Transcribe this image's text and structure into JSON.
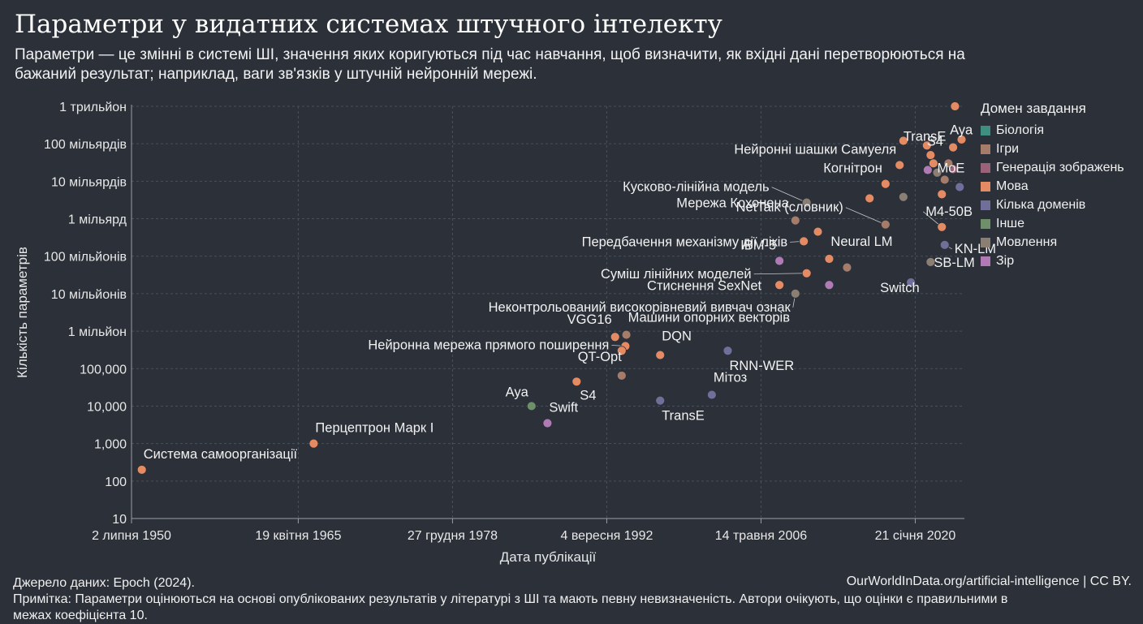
{
  "title": "Параметри у видатних системах штучного інтелекту",
  "subtitle": "Параметри — це змінні в системі ШІ, значення яких коригуються під час навчання, щоб визначити, як вхідні дані перетворюються на бажаний результат; наприклад, ваги зв'язків у штучній нейронній мережі.",
  "footer": {
    "source": "Джерело даних: Epoch (2024).",
    "url": "OurWorldInData.org/artificial-intelligence | CC BY.",
    "note": "Примітка: Параметри оцінюються на основі опублікованих результатів у літературі з ШІ та мають певну невизначеність. Автори очікують, що оцінки є правильними в межах коефіцієнта 10."
  },
  "chart_data": {
    "type": "scatter",
    "xlabel": "Дата публікації",
    "ylabel": "Кількість параметрів",
    "y_scale": "log",
    "xlim": [
      "1950-07-02",
      "2024-06-01"
    ],
    "ylim": [
      10,
      1000000000000
    ],
    "grid": true,
    "x_ticks": [
      {
        "date": "1950-07-02",
        "label": "2 липня 1950"
      },
      {
        "date": "1965-04-19",
        "label": "19 квітня 1965"
      },
      {
        "date": "1978-12-27",
        "label": "27 грудня 1978"
      },
      {
        "date": "1992-09-04",
        "label": "4 вересня 1992"
      },
      {
        "date": "2006-05-14",
        "label": "14 травня 2006"
      },
      {
        "date": "2020-01-21",
        "label": "21 січня 2020"
      }
    ],
    "y_ticks": [
      {
        "value": 10,
        "label": "10"
      },
      {
        "value": 100,
        "label": "100"
      },
      {
        "value": 1000,
        "label": "1,000"
      },
      {
        "value": 10000,
        "label": "10,000"
      },
      {
        "value": 100000,
        "label": "100,000"
      },
      {
        "value": 1000000,
        "label": "1 мільйон"
      },
      {
        "value": 10000000,
        "label": "10 мільйонів"
      },
      {
        "value": 100000000,
        "label": "100 мільйонів"
      },
      {
        "value": 1000000000,
        "label": "1 мільярд"
      },
      {
        "value": 10000000000,
        "label": "10 мільярдів"
      },
      {
        "value": 100000000000,
        "label": "100 мільярдів"
      },
      {
        "value": 1000000000000,
        "label": "1 трильйон"
      }
    ],
    "legend": {
      "title": "Домен завдання",
      "placement": "right",
      "items": [
        {
          "name": "Біологія",
          "color": "#3f8f80"
        },
        {
          "name": "Ігри",
          "color": "#a57b6a"
        },
        {
          "name": "Генерація зображень",
          "color": "#9a6478"
        },
        {
          "name": "Мова",
          "color": "#e58b63"
        },
        {
          "name": "Кілька доменів",
          "color": "#6f6f99"
        },
        {
          "name": "Інше",
          "color": "#6f8f6a"
        },
        {
          "name": "Мовлення",
          "color": "#8a7f72"
        },
        {
          "name": "Зір",
          "color": "#b07ab5"
        }
      ]
    },
    "points": [
      {
        "date": "1951-06-01",
        "y": 200,
        "domain": "Мова",
        "label": "Система самоорганізації"
      },
      {
        "date": "1966-09-01",
        "y": 1000,
        "domain": "Мова",
        "label": "Перцептрон Марк I"
      },
      {
        "date": "1986-01-01",
        "y": 10000,
        "domain": "Інше",
        "label": "Aya"
      },
      {
        "date": "1987-06-01",
        "y": 3500,
        "domain": "Зір",
        "label": "Swift"
      },
      {
        "date": "1990-01-01",
        "y": 45000,
        "domain": "Мова",
        "label": "S4"
      },
      {
        "date": "1994-01-01",
        "y": 65000,
        "domain": "Ігри",
        "label": "QT-Opt"
      },
      {
        "date": "1993-06-01",
        "y": 700000,
        "domain": "Мова",
        "label": "VGG16"
      },
      {
        "date": "1994-06-01",
        "y": 800000,
        "domain": "Ігри",
        "label": "Машини опорних векторів"
      },
      {
        "date": "1994-05-01",
        "y": 400000,
        "domain": "Мова",
        "label": "Нейронна мережа прямого поширення"
      },
      {
        "date": "1994-01-01",
        "y": 300000,
        "domain": "Мова"
      },
      {
        "date": "1997-06-01",
        "y": 230000,
        "domain": "Мова",
        "label": "DQN"
      },
      {
        "date": "1997-06-01",
        "y": 14000,
        "domain": "Кілька доменів",
        "label": "TransE"
      },
      {
        "date": "2002-01-01",
        "y": 20000,
        "domain": "Кілька доменів",
        "label": "Мітоз"
      },
      {
        "date": "2003-06-01",
        "y": 300000,
        "domain": "Кілька доменів",
        "label": "RNN-WER"
      },
      {
        "date": "2008-01-01",
        "y": 17000000,
        "domain": "Мова",
        "label": "Стиснення SexNet"
      },
      {
        "date": "2009-06-01",
        "y": 10000000,
        "domain": "Мовлення",
        "label": "Неконтрольований високорівневий вивчач ознак"
      },
      {
        "date": "2010-06-01",
        "y": 35000000,
        "domain": "Мова",
        "label": "Суміш лінійних моделей"
      },
      {
        "date": "2012-06-01",
        "y": 17000000,
        "domain": "Зір"
      },
      {
        "date": "2012-06-01",
        "y": 85000000,
        "domain": "Мова",
        "label": "Neural LM"
      },
      {
        "date": "2014-01-01",
        "y": 50000000,
        "domain": "Ігри"
      },
      {
        "date": "2008-01-01",
        "y": 75000000,
        "domain": "Зір",
        "label": "IBM-5"
      },
      {
        "date": "2010-03-01",
        "y": 250000000,
        "domain": "Мова",
        "label": "Передбачення механізму дії ліків"
      },
      {
        "date": "2011-06-01",
        "y": 450000000,
        "domain": "Мова"
      },
      {
        "date": "2009-06-01",
        "y": 900000000,
        "domain": "Ігри",
        "label": "Мережа Кохонена"
      },
      {
        "date": "2017-06-01",
        "y": 700000000,
        "domain": "Ігри",
        "label": "NetTalk (словник)"
      },
      {
        "date": "2010-06-01",
        "y": 2700000000,
        "domain": "Мовлення",
        "label": "Кусково-лінійна модель"
      },
      {
        "date": "2016-01-01",
        "y": 3500000000,
        "domain": "Мова"
      },
      {
        "date": "2017-06-01",
        "y": 8500000000,
        "domain": "Мова",
        "label": "Когнітрон"
      },
      {
        "date": "2019-01-01",
        "y": 3800000000,
        "domain": "Мовлення"
      },
      {
        "date": "2018-09-01",
        "y": 27000000000,
        "domain": "Мова",
        "label": "Нейронні шашки Самуеля"
      },
      {
        "date": "2019-01-01",
        "y": 120000000000,
        "domain": "Мова",
        "label": "TransE"
      },
      {
        "date": "2021-03-01",
        "y": 20000000000,
        "domain": "Зір"
      },
      {
        "date": "2021-02-01",
        "y": 90000000000,
        "domain": "Мова",
        "label": "S4"
      },
      {
        "date": "2021-06-01",
        "y": 50000000000,
        "domain": "Мова"
      },
      {
        "date": "2021-09-01",
        "y": 30000000000,
        "domain": "Мова"
      },
      {
        "date": "2022-01-01",
        "y": 17000000000,
        "domain": "Мовлення",
        "label": "MoE"
      },
      {
        "date": "2022-06-01",
        "y": 4500000000,
        "domain": "Мова"
      },
      {
        "date": "2022-09-01",
        "y": 11000000000,
        "domain": "Ігри"
      },
      {
        "date": "2023-06-01",
        "y": 21000000000,
        "domain": "Генерація зображень"
      },
      {
        "date": "2023-01-01",
        "y": 30000000000,
        "domain": "Ігри"
      },
      {
        "date": "2023-06-01",
        "y": 80000000000,
        "domain": "Мова",
        "label": "Aya"
      },
      {
        "date": "2024-03-01",
        "y": 130000000000,
        "domain": "Мова"
      },
      {
        "date": "2023-08-01",
        "y": 1000000000000,
        "domain": "Мова"
      },
      {
        "date": "2022-06-01",
        "y": 600000000,
        "domain": "Мова",
        "label": "M4-50B"
      },
      {
        "date": "2022-09-01",
        "y": 200000000,
        "domain": "Кілька доменів",
        "label": "KN-LM"
      },
      {
        "date": "2024-01-01",
        "y": 7000000000,
        "domain": "Кілька доменів"
      },
      {
        "date": "2021-06-01",
        "y": 70000000,
        "domain": "Мовлення",
        "label": "SB-LM"
      },
      {
        "date": "2019-09-01",
        "y": 20000000,
        "domain": "Кілька доменів",
        "label": "Switch"
      }
    ]
  }
}
